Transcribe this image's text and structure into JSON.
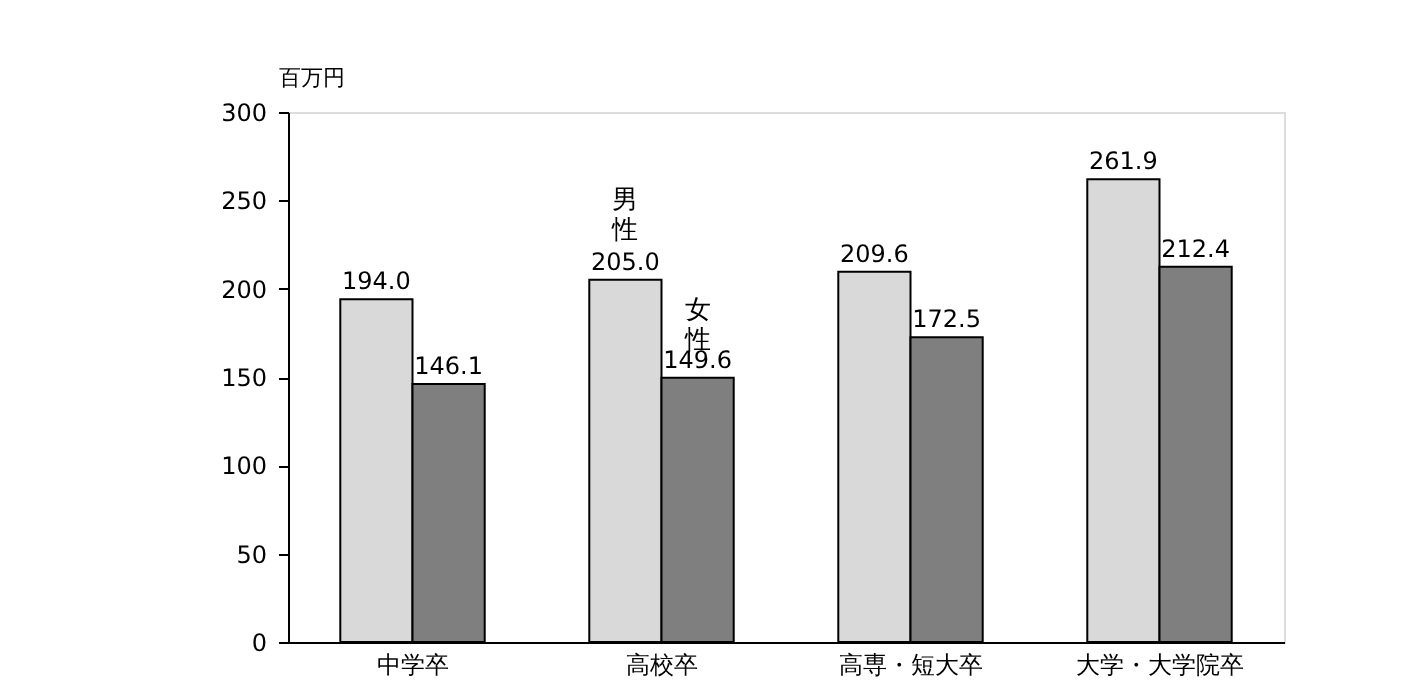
{
  "chart_data": {
    "type": "bar",
    "ylabel": "百万円",
    "categories": [
      "中学卒",
      "高校卒",
      "高専・短大卒",
      "大学・大学院卒"
    ],
    "series": [
      {
        "name": "男性",
        "color": "#d9d9d9",
        "values": [
          194.0,
          205.0,
          209.6,
          261.9
        ],
        "value_labels": [
          "194.0",
          "205.0",
          "209.6",
          "261.9"
        ]
      },
      {
        "name": "女性",
        "color": "#7f7f7f",
        "values": [
          146.1,
          149.6,
          172.5,
          212.4
        ],
        "value_labels": [
          "146.1",
          "149.6",
          "172.5",
          "212.4"
        ]
      }
    ],
    "ylim": [
      0,
      300
    ],
    "yticks": [
      0,
      50,
      100,
      150,
      200,
      250,
      300
    ],
    "grid": false
  }
}
